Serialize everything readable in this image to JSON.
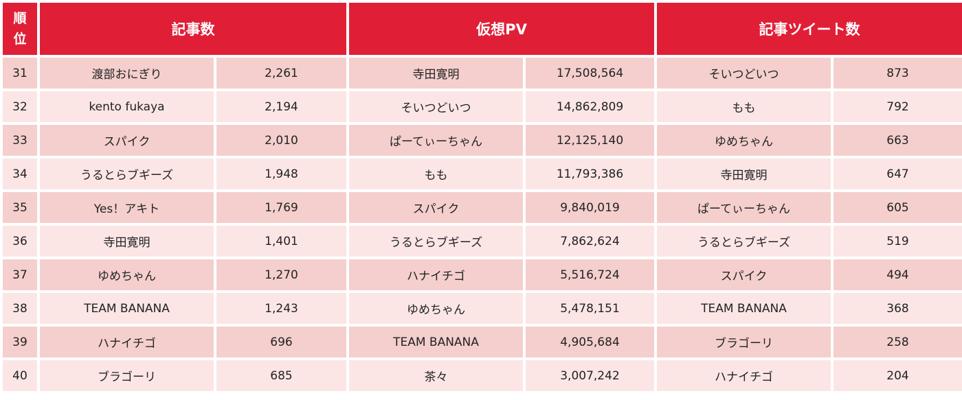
{
  "header": {
    "rank_line1": "順",
    "rank_line2": "位",
    "col_articles": "記事数",
    "col_pv": "仮想PV",
    "col_tweets": "記事ツイート数"
  },
  "rows": [
    {
      "rank": "31",
      "articles_name": "渡部おにぎり",
      "articles_value": "2,261",
      "pv_name": "寺田寛明",
      "pv_value": "17,508,564",
      "tweets_name": "そいつどいつ",
      "tweets_value": "873"
    },
    {
      "rank": "32",
      "articles_name": "kento fukaya",
      "articles_value": "2,194",
      "pv_name": "そいつどいつ",
      "pv_value": "14,862,809",
      "tweets_name": "もも",
      "tweets_value": "792"
    },
    {
      "rank": "33",
      "articles_name": "スパイク",
      "articles_value": "2,010",
      "pv_name": "ぱーてぃーちゃん",
      "pv_value": "12,125,140",
      "tweets_name": "ゆめちゃん",
      "tweets_value": "663"
    },
    {
      "rank": "34",
      "articles_name": "うるとらブギーズ",
      "articles_value": "1,948",
      "pv_name": "もも",
      "pv_value": "11,793,386",
      "tweets_name": "寺田寛明",
      "tweets_value": "647"
    },
    {
      "rank": "35",
      "articles_name": "Yes！アキト",
      "articles_value": "1,769",
      "pv_name": "スパイク",
      "pv_value": "9,840,019",
      "tweets_name": "ぱーてぃーちゃん",
      "tweets_value": "605"
    },
    {
      "rank": "36",
      "articles_name": "寺田寛明",
      "articles_value": "1,401",
      "pv_name": "うるとらブギーズ",
      "pv_value": "7,862,624",
      "tweets_name": "うるとらブギーズ",
      "tweets_value": "519"
    },
    {
      "rank": "37",
      "articles_name": "ゆめちゃん",
      "articles_value": "1,270",
      "pv_name": "ハナイチゴ",
      "pv_value": "5,516,724",
      "tweets_name": "スパイク",
      "tweets_value": "494"
    },
    {
      "rank": "38",
      "articles_name": "TEAM BANANA",
      "articles_value": "1,243",
      "pv_name": "ゆめちゃん",
      "pv_value": "5,478,151",
      "tweets_name": "TEAM BANANA",
      "tweets_value": "368"
    },
    {
      "rank": "39",
      "articles_name": "ハナイチゴ",
      "articles_value": "696",
      "pv_name": "TEAM BANANA",
      "pv_value": "4,905,684",
      "tweets_name": "ブラゴーリ",
      "tweets_value": "258"
    },
    {
      "rank": "40",
      "articles_name": "ブラゴーリ",
      "articles_value": "685",
      "pv_name": "茶々",
      "pv_value": "3,007,242",
      "tweets_name": "ハナイチゴ",
      "tweets_value": "204"
    }
  ]
}
